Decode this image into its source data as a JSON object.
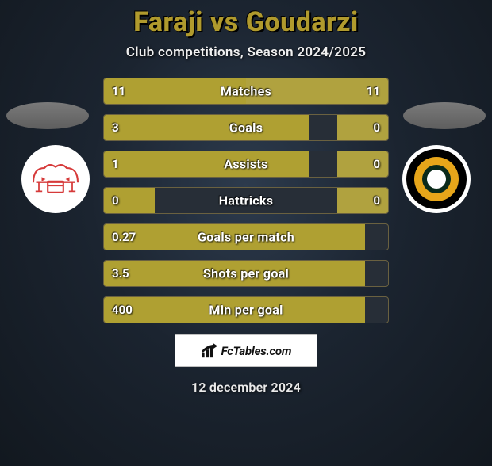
{
  "header": {
    "player_left": "Faraji",
    "vs": "vs",
    "player_right": "Goudarzi",
    "subtitle": "Club competitions, Season 2024/2025",
    "title_color": "#b09a2d"
  },
  "left_badge": {
    "bg": "#ffffff",
    "stroke": "#d63a3a"
  },
  "right_badge": {
    "ring_outer": "#000000",
    "ring_mid": "#e7a61a",
    "ring_inner": "#0a2a1a",
    "center": "#ffffff"
  },
  "bars": {
    "fill_color": "#afa032",
    "track_color": "#272e37",
    "border_color": "#6a6140"
  },
  "stats": [
    {
      "label": "Matches",
      "left_val": "11",
      "right_val": "11",
      "left_pct": 50,
      "right_pct": 50
    },
    {
      "label": "Goals",
      "left_val": "3",
      "right_val": "0",
      "left_pct": 72,
      "right_pct": 18
    },
    {
      "label": "Assists",
      "left_val": "1",
      "right_val": "0",
      "left_pct": 72,
      "right_pct": 18
    },
    {
      "label": "Hattricks",
      "left_val": "0",
      "right_val": "0",
      "left_pct": 18,
      "right_pct": 18
    },
    {
      "label": "Goals per match",
      "left_val": "0.27",
      "right_val": "",
      "left_pct": 92,
      "right_pct": 0
    },
    {
      "label": "Shots per goal",
      "left_val": "3.5",
      "right_val": "",
      "left_pct": 92,
      "right_pct": 0
    },
    {
      "label": "Min per goal",
      "left_val": "400",
      "right_val": "",
      "left_pct": 92,
      "right_pct": 0
    }
  ],
  "brand": {
    "text": "FcTables.com"
  },
  "footer_date": "12 december 2024"
}
